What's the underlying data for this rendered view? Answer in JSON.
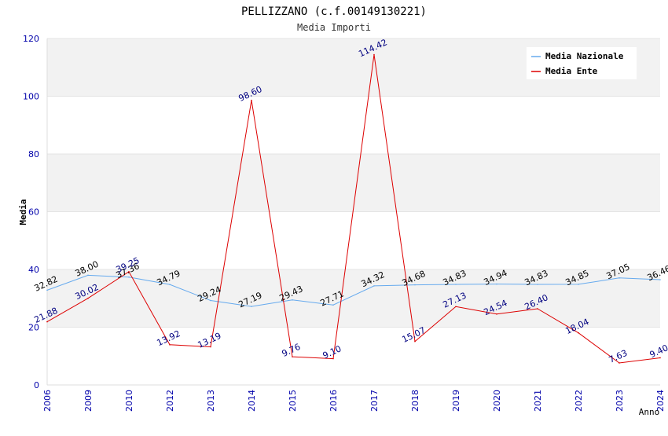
{
  "chart_data": {
    "type": "line",
    "title": "PELLIZZANO (c.f.00149130221)",
    "subtitle": "Media Importi",
    "xlabel": "Anno",
    "ylabel": "Media",
    "ylim": [
      0,
      120
    ],
    "yticks": [
      0,
      20,
      40,
      60,
      80,
      100,
      120
    ],
    "categories": [
      "2006",
      "2009",
      "2010",
      "2012",
      "2013",
      "2014",
      "2015",
      "2016",
      "2017",
      "2018",
      "2019",
      "2020",
      "2021",
      "2022",
      "2023",
      "2024"
    ],
    "series": [
      {
        "name": "Media Nazionale",
        "color": "#66aaee",
        "label_color": "#000000",
        "values": [
          32.82,
          38.0,
          37.36,
          34.79,
          29.24,
          27.19,
          29.43,
          27.71,
          34.32,
          34.68,
          34.83,
          34.94,
          34.83,
          34.85,
          37.05,
          36.46
        ],
        "labels": [
          "32.82",
          "38.00",
          "37.36",
          "34.79",
          "29.24",
          "27.19",
          "29.43",
          "27.71",
          "34.32",
          "34.68",
          "34.83",
          "34.94",
          "34.83",
          "34.85",
          "37.05",
          "36.46"
        ]
      },
      {
        "name": "Media Ente",
        "color": "#dd0000",
        "label_color": "#000080",
        "values": [
          21.88,
          30.02,
          39.25,
          13.92,
          13.19,
          98.6,
          9.76,
          9.1,
          114.42,
          15.07,
          27.13,
          24.54,
          26.4,
          18.04,
          7.63,
          9.4
        ],
        "labels": [
          "21.88",
          "30.02",
          "39.25",
          "13.92",
          "13.19",
          "98.60",
          "9.76",
          "9.10",
          "114.42",
          "15.07",
          "27.13",
          "24.54",
          "26.40",
          "18.04",
          "7.63",
          "9.40"
        ]
      }
    ],
    "legend": "top-right",
    "grid": true,
    "band_colors": [
      "#f2f2f2",
      "#ffffff"
    ],
    "axis_text_color": "#0000aa"
  }
}
